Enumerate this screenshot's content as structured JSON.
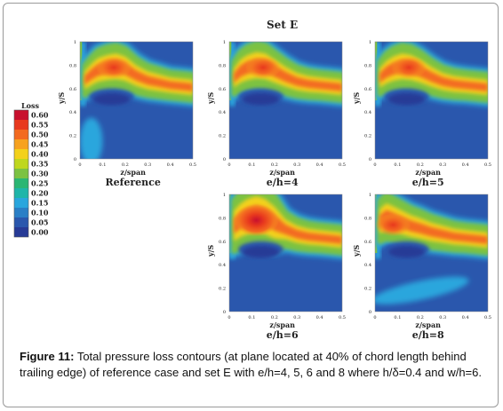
{
  "figure_title": "Set E",
  "legend": {
    "title": "Loss",
    "labels": [
      "0.60",
      "0.55",
      "0.50",
      "0.45",
      "0.40",
      "0.35",
      "0.30",
      "0.25",
      "0.20",
      "0.15",
      "0.10",
      "0.05",
      "0.00"
    ],
    "colors": [
      "#c8102e",
      "#e8391e",
      "#f36a20",
      "#f7a21f",
      "#f3d11b",
      "#bfd71e",
      "#7cc242",
      "#2bb673",
      "#1fb5a9",
      "#29a6dd",
      "#2a7fc6",
      "#2a57ad",
      "#273a96"
    ]
  },
  "caption": {
    "label": "Figure 11:",
    "text": "Total pressure loss contours (at plane located at 40% of chord length behind trailing edge) of reference case and set E with e/h=4, 5, 6 and 8 where h/δ=0.4 and w/h=6."
  },
  "chart_data": [
    {
      "type": "heatmap",
      "label": "Reference",
      "xlabel": "z/span",
      "ylabel": "y/S",
      "xlim": [
        0,
        0.5
      ],
      "ylim": [
        0,
        1
      ],
      "xticks": [
        "0",
        "0.1",
        "0.2",
        "0.3",
        "0.4",
        "0.5"
      ],
      "yticks": [
        "0",
        "0.2",
        "0.4",
        "0.6",
        "0.8",
        "1"
      ]
    },
    {
      "type": "heatmap",
      "label": "e/h=4",
      "xlabel": "z/span",
      "ylabel": "y/S",
      "xlim": [
        0,
        0.5
      ],
      "ylim": [
        0,
        1
      ],
      "xticks": [
        "0",
        "0.1",
        "0.2",
        "0.3",
        "0.4",
        "0.5"
      ],
      "yticks": [
        "0",
        "0.2",
        "0.4",
        "0.6",
        "0.8",
        "1"
      ]
    },
    {
      "type": "heatmap",
      "label": "e/h=5",
      "xlabel": "z/span",
      "ylabel": "y/S",
      "xlim": [
        0,
        0.5
      ],
      "ylim": [
        0,
        1
      ],
      "xticks": [
        "0",
        "0.1",
        "0.2",
        "0.3",
        "0.4",
        "0.5"
      ],
      "yticks": [
        "0",
        "0.2",
        "0.4",
        "0.6",
        "0.8",
        "1"
      ]
    },
    {
      "type": "heatmap",
      "label": "e/h=6",
      "xlabel": "z/span",
      "ylabel": "y/S",
      "xlim": [
        0,
        0.5
      ],
      "ylim": [
        0,
        1
      ],
      "xticks": [
        "0",
        "0.1",
        "0.2",
        "0.3",
        "0.4",
        "0.5"
      ],
      "yticks": [
        "0",
        "0.2",
        "0.4",
        "0.6",
        "0.8",
        "1"
      ]
    },
    {
      "type": "heatmap",
      "label": "e/h=8",
      "xlabel": "z/span",
      "ylabel": "y/S",
      "xlim": [
        0,
        0.5
      ],
      "ylim": [
        0,
        1
      ],
      "xticks": [
        "0",
        "0.1",
        "0.2",
        "0.3",
        "0.4",
        "0.5"
      ],
      "yticks": [
        "0",
        "0.2",
        "0.4",
        "0.6",
        "0.8",
        "1"
      ]
    }
  ]
}
